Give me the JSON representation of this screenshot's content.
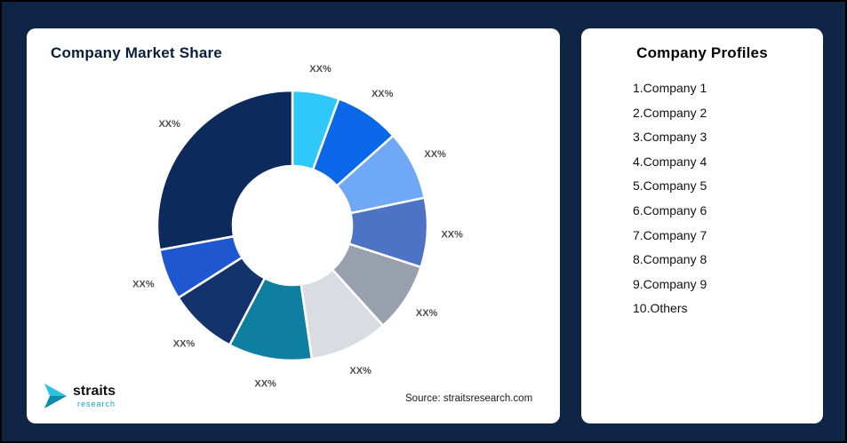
{
  "page": {
    "background_color": "#0e2545",
    "border_color": "#000000"
  },
  "market_share_card": {
    "title": "Company Market Share",
    "source_text": "Source: straitsresearch.com",
    "logo": {
      "brand": "straits",
      "sub_brand": "research",
      "icon_color": "#17a9c6"
    }
  },
  "profiles_card": {
    "title": "Company Profiles",
    "items": [
      "1.Company 1",
      "2.Company 2",
      "3.Company 3",
      "4.Company 4",
      "5.Company 5",
      "6.Company 6",
      "7.Company 7",
      "8.Company 8",
      "9.Company 9",
      "10.Others"
    ]
  },
  "chart_data": {
    "type": "pie",
    "subtype": "donut",
    "title": "Company Market Share",
    "legend_position": "none",
    "start_angle_deg": 0,
    "direction": "clockwise",
    "note": "All slice data labels are masked as XX% in the source image; values are arc-share estimates in percent.",
    "slice_label_text": "XX%",
    "slices": [
      {
        "label": "XX%",
        "value": 5.6,
        "color": "#30c8f8"
      },
      {
        "label": "XX%",
        "value": 7.8,
        "color": "#0a68e8"
      },
      {
        "label": "XX%",
        "value": 8.3,
        "color": "#6fa8f5"
      },
      {
        "label": "XX%",
        "value": 8.3,
        "color": "#4d74c4"
      },
      {
        "label": "XX%",
        "value": 8.3,
        "color": "#97a0ac"
      },
      {
        "label": "XX%",
        "value": 9.4,
        "color": "#d9dce1"
      },
      {
        "label": "XX%",
        "value": 10.0,
        "color": "#0f7f9f"
      },
      {
        "label": "XX%",
        "value": 8.3,
        "color": "#14336d"
      },
      {
        "label": "XX%",
        "value": 6.1,
        "color": "#1e57d0"
      },
      {
        "label": "XX%",
        "value": 27.9,
        "color": "#0d2a5c"
      }
    ]
  }
}
